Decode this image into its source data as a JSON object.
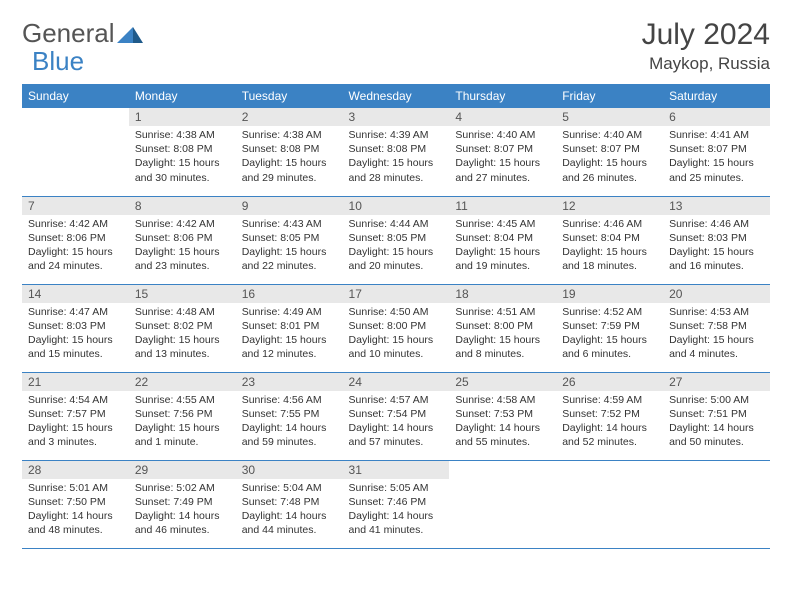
{
  "brand": {
    "part1": "General",
    "part2": "Blue"
  },
  "header": {
    "month": "July 2024",
    "location": "Maykop, Russia"
  },
  "colors": {
    "header_bg": "#3b82c4",
    "header_text": "#ffffff",
    "daynum_bg": "#e8e8e8",
    "text": "#333333",
    "border": "#3b82c4"
  },
  "layout": {
    "first_day_column": 1,
    "rows": 5,
    "cols": 7
  },
  "weekdays": [
    "Sunday",
    "Monday",
    "Tuesday",
    "Wednesday",
    "Thursday",
    "Friday",
    "Saturday"
  ],
  "days": [
    {
      "n": 1,
      "sr": "4:38 AM",
      "ss": "8:08 PM",
      "dl": "15 hours and 30 minutes."
    },
    {
      "n": 2,
      "sr": "4:38 AM",
      "ss": "8:08 PM",
      "dl": "15 hours and 29 minutes."
    },
    {
      "n": 3,
      "sr": "4:39 AM",
      "ss": "8:08 PM",
      "dl": "15 hours and 28 minutes."
    },
    {
      "n": 4,
      "sr": "4:40 AM",
      "ss": "8:07 PM",
      "dl": "15 hours and 27 minutes."
    },
    {
      "n": 5,
      "sr": "4:40 AM",
      "ss": "8:07 PM",
      "dl": "15 hours and 26 minutes."
    },
    {
      "n": 6,
      "sr": "4:41 AM",
      "ss": "8:07 PM",
      "dl": "15 hours and 25 minutes."
    },
    {
      "n": 7,
      "sr": "4:42 AM",
      "ss": "8:06 PM",
      "dl": "15 hours and 24 minutes."
    },
    {
      "n": 8,
      "sr": "4:42 AM",
      "ss": "8:06 PM",
      "dl": "15 hours and 23 minutes."
    },
    {
      "n": 9,
      "sr": "4:43 AM",
      "ss": "8:05 PM",
      "dl": "15 hours and 22 minutes."
    },
    {
      "n": 10,
      "sr": "4:44 AM",
      "ss": "8:05 PM",
      "dl": "15 hours and 20 minutes."
    },
    {
      "n": 11,
      "sr": "4:45 AM",
      "ss": "8:04 PM",
      "dl": "15 hours and 19 minutes."
    },
    {
      "n": 12,
      "sr": "4:46 AM",
      "ss": "8:04 PM",
      "dl": "15 hours and 18 minutes."
    },
    {
      "n": 13,
      "sr": "4:46 AM",
      "ss": "8:03 PM",
      "dl": "15 hours and 16 minutes."
    },
    {
      "n": 14,
      "sr": "4:47 AM",
      "ss": "8:03 PM",
      "dl": "15 hours and 15 minutes."
    },
    {
      "n": 15,
      "sr": "4:48 AM",
      "ss": "8:02 PM",
      "dl": "15 hours and 13 minutes."
    },
    {
      "n": 16,
      "sr": "4:49 AM",
      "ss": "8:01 PM",
      "dl": "15 hours and 12 minutes."
    },
    {
      "n": 17,
      "sr": "4:50 AM",
      "ss": "8:00 PM",
      "dl": "15 hours and 10 minutes."
    },
    {
      "n": 18,
      "sr": "4:51 AM",
      "ss": "8:00 PM",
      "dl": "15 hours and 8 minutes."
    },
    {
      "n": 19,
      "sr": "4:52 AM",
      "ss": "7:59 PM",
      "dl": "15 hours and 6 minutes."
    },
    {
      "n": 20,
      "sr": "4:53 AM",
      "ss": "7:58 PM",
      "dl": "15 hours and 4 minutes."
    },
    {
      "n": 21,
      "sr": "4:54 AM",
      "ss": "7:57 PM",
      "dl": "15 hours and 3 minutes."
    },
    {
      "n": 22,
      "sr": "4:55 AM",
      "ss": "7:56 PM",
      "dl": "15 hours and 1 minute."
    },
    {
      "n": 23,
      "sr": "4:56 AM",
      "ss": "7:55 PM",
      "dl": "14 hours and 59 minutes."
    },
    {
      "n": 24,
      "sr": "4:57 AM",
      "ss": "7:54 PM",
      "dl": "14 hours and 57 minutes."
    },
    {
      "n": 25,
      "sr": "4:58 AM",
      "ss": "7:53 PM",
      "dl": "14 hours and 55 minutes."
    },
    {
      "n": 26,
      "sr": "4:59 AM",
      "ss": "7:52 PM",
      "dl": "14 hours and 52 minutes."
    },
    {
      "n": 27,
      "sr": "5:00 AM",
      "ss": "7:51 PM",
      "dl": "14 hours and 50 minutes."
    },
    {
      "n": 28,
      "sr": "5:01 AM",
      "ss": "7:50 PM",
      "dl": "14 hours and 48 minutes."
    },
    {
      "n": 29,
      "sr": "5:02 AM",
      "ss": "7:49 PM",
      "dl": "14 hours and 46 minutes."
    },
    {
      "n": 30,
      "sr": "5:04 AM",
      "ss": "7:48 PM",
      "dl": "14 hours and 44 minutes."
    },
    {
      "n": 31,
      "sr": "5:05 AM",
      "ss": "7:46 PM",
      "dl": "14 hours and 41 minutes."
    }
  ],
  "labels": {
    "sunrise": "Sunrise:",
    "sunset": "Sunset:",
    "daylight": "Daylight:"
  }
}
